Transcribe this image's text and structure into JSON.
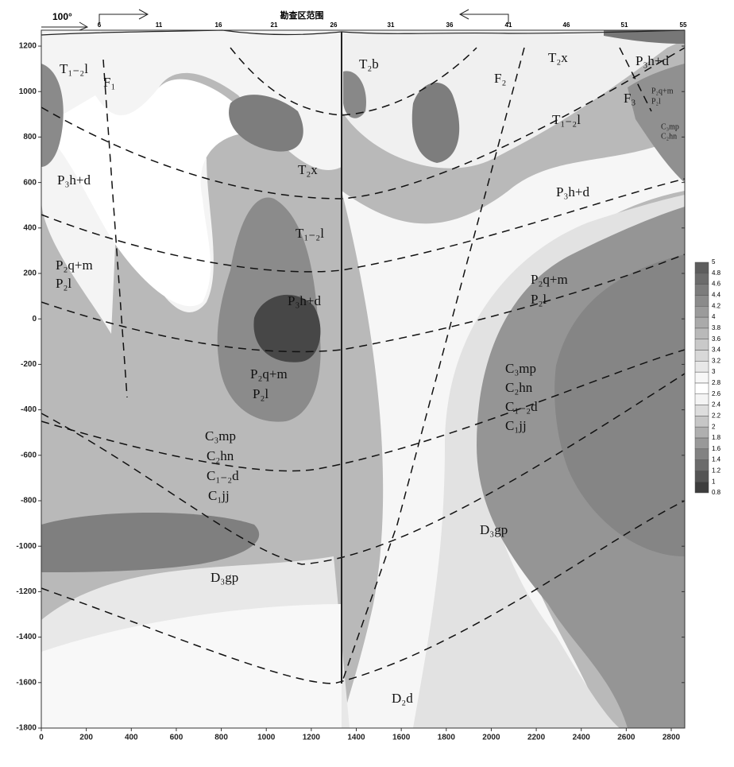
{
  "chart_data": {
    "type": "contour",
    "title": "勘查区范围",
    "azimuth": "100°",
    "stations": [
      "6",
      "11",
      "16",
      "21",
      "26",
      "31",
      "36",
      "41",
      "46",
      "51",
      "55"
    ],
    "xlim": [
      0,
      2860
    ],
    "ylim": [
      -1800,
      1270
    ],
    "xticks": [
      0,
      200,
      400,
      600,
      800,
      1000,
      1200,
      1400,
      1600,
      1800,
      2000,
      2200,
      2400,
      2600,
      2800
    ],
    "yticks": [
      -1800,
      -1600,
      -1400,
      -1200,
      -1000,
      -800,
      -600,
      -400,
      -200,
      0,
      200,
      400,
      600,
      800,
      1000,
      1200
    ],
    "colorbar": {
      "lim": [
        0.8,
        5
      ],
      "ticks": [
        0.8,
        1,
        1.2,
        1.4,
        1.6,
        1.8,
        2,
        2.2,
        2.4,
        2.6,
        2.8,
        3,
        3.2,
        3.4,
        3.6,
        3.8,
        4,
        4.2,
        4.4,
        4.6,
        4.8,
        5
      ]
    },
    "annotations": [
      "T₁₋₂l",
      "F₁",
      "P₃h+d",
      "P₂q+m",
      "P₂l",
      "T₂x",
      "T₁₋₂l",
      "P₃h+d",
      "P₂q+m",
      "P₂l",
      "C₃mp",
      "C₂hn",
      "C₁₋₂d",
      "C₁jj",
      "D₃gp",
      "T₂b",
      "F₂",
      "T₂x",
      "T₁₋₂l",
      "P₃h+d",
      "F₃",
      "P₂q+m",
      "P₂l",
      "C₃mp",
      "C₂hn",
      "P₃h+d",
      "P₂q+m",
      "P₂l",
      "C₃mp",
      "C₂hn",
      "C₁₋₂d",
      "C₁jj",
      "D₃gp",
      "D₂d"
    ]
  }
}
